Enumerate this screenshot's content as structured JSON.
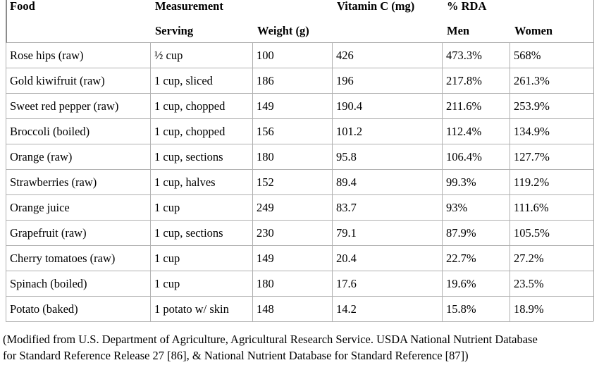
{
  "headers": {
    "food": "Food",
    "measurement": "Measurement",
    "vitamin_c": "Vitamin C (mg)",
    "rda": "% RDA",
    "serving": "Serving",
    "weight": "Weight (g)",
    "men": "Men",
    "women": "Women"
  },
  "rows": [
    {
      "food": "Rose hips (raw)",
      "serving": "½ cup",
      "weight": "100",
      "vitc": "426",
      "men": "473.3%",
      "women": "568%"
    },
    {
      "food": "Gold kiwifruit (raw)",
      "serving": "1 cup, sliced",
      "weight": "186",
      "vitc": "196",
      "men": "217.8%",
      "women": "261.3%"
    },
    {
      "food": "Sweet red pepper (raw)",
      "serving": "1 cup, chopped",
      "weight": "149",
      "vitc": "190.4",
      "men": "211.6%",
      "women": "253.9%"
    },
    {
      "food": "Broccoli (boiled)",
      "serving": "1 cup, chopped",
      "weight": "156",
      "vitc": "101.2",
      "men": "112.4%",
      "women": "134.9%"
    },
    {
      "food": "Orange (raw)",
      "serving": "1 cup, sections",
      "weight": "180",
      "vitc": "95.8",
      "men": "106.4%",
      "women": "127.7%"
    },
    {
      "food": "Strawberries (raw)",
      "serving": "1 cup, halves",
      "weight": "152",
      "vitc": "89.4",
      "men": "99.3%",
      "women": "119.2%"
    },
    {
      "food": "Orange juice",
      "serving": "1 cup",
      "weight": "249",
      "vitc": "83.7",
      "men": "93%",
      "women": "111.6%"
    },
    {
      "food": "Grapefruit (raw)",
      "serving": "1 cup, sections",
      "weight": "230",
      "vitc": "79.1",
      "men": "87.9%",
      "women": "105.5%"
    },
    {
      "food": "Cherry tomatoes (raw)",
      "serving": "1 cup",
      "weight": "149",
      "vitc": "20.4",
      "men": "22.7%",
      "women": "27.2%"
    },
    {
      "food": "Spinach (boiled)",
      "serving": "1 cup",
      "weight": "180",
      "vitc": "17.6",
      "men": "19.6%",
      "women": "23.5%"
    },
    {
      "food": "Potato (baked)",
      "serving": "1 potato w/ skin",
      "weight": "148",
      "vitc": "14.2",
      "men": "15.8%",
      "women": "18.9%"
    }
  ],
  "footnote": {
    "line1": "(Modified from U.S. Department of Agriculture, Agricultural Research Service. USDA National Nutrient Database",
    "line2": "for Standard Reference Release 27 [86], & National Nutrient Database for Standard Reference [87])"
  }
}
